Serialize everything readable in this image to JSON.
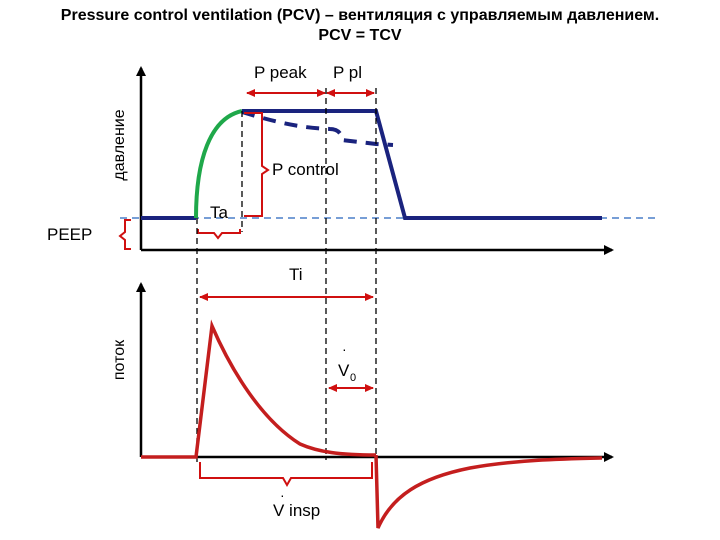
{
  "title": {
    "line1": "Pressure control ventilation (PCV) – вентиляция с управляемым давлением.",
    "line2": "PCV = TCV"
  },
  "labels": {
    "pressure_axis": "давление",
    "flow_axis": "поток",
    "p_peak": "P peak",
    "p_pl": "P pl",
    "p_control": "P control",
    "ta": "Ta",
    "peep": "PEEP",
    "ti": "Ti",
    "v0": "V",
    "v0_sub": "0",
    "v_insp": "V insp"
  },
  "colors": {
    "pressure_curve": "#1a237e",
    "rise_curve": "#1fa84a",
    "flow_curve": "#c41e1e",
    "annotation": "#d01010",
    "peep_line": "#4a7ec8",
    "axis": "#000000"
  }
}
